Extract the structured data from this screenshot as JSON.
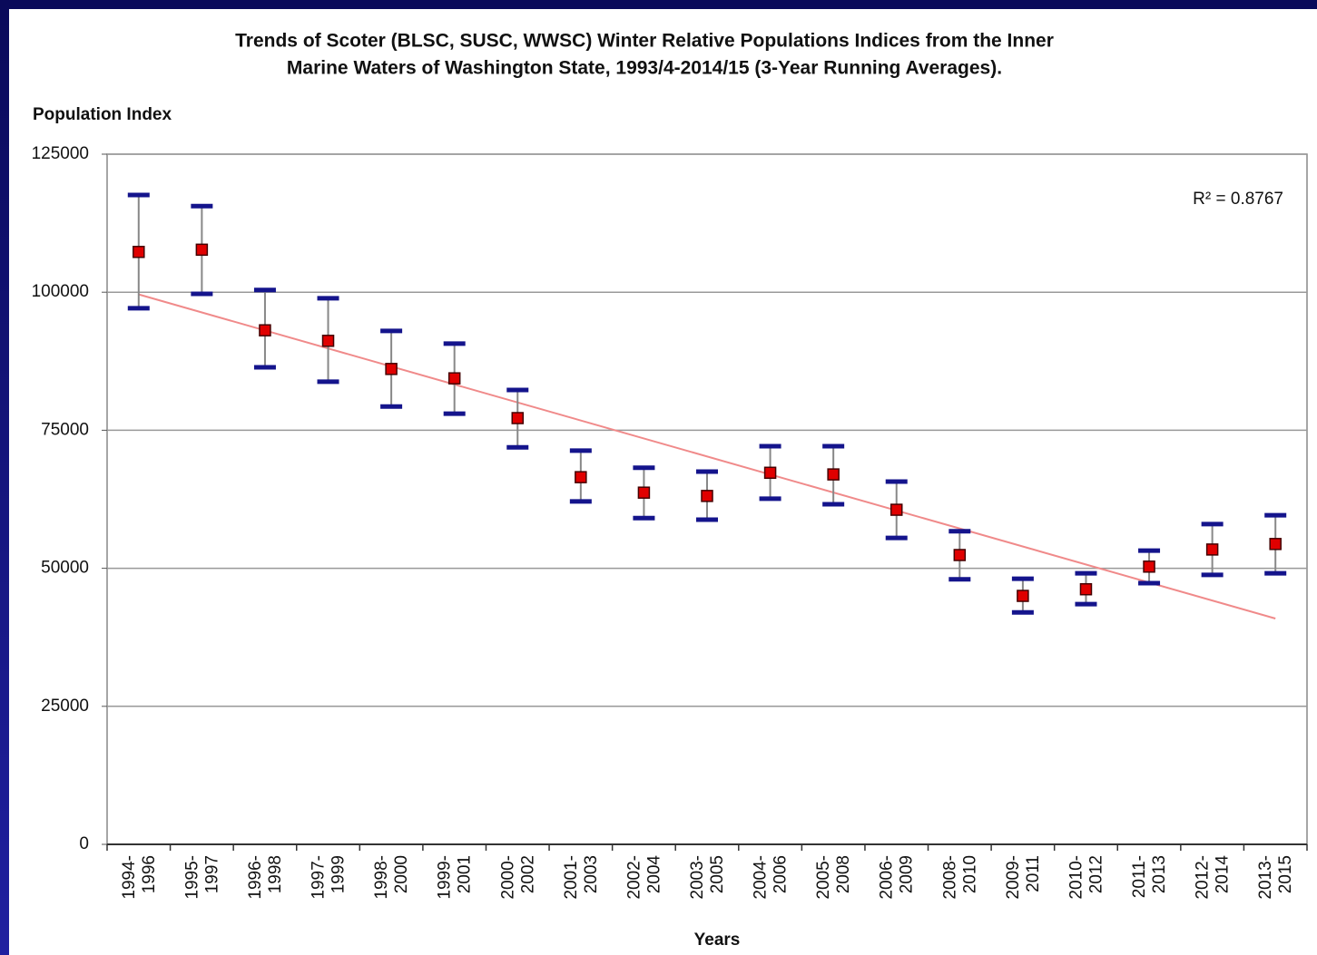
{
  "chart_data": {
    "type": "errorbar",
    "title": [
      "Trends of Scoter (BLSC, SUSC, WWSC) Winter Relative Populations Indices from the Inner",
      "Marine Waters of Washington State, 1993/4-2014/15 (3-Year Running Averages)."
    ],
    "y_label": "Population Index",
    "x_label": "Years",
    "categories": [
      "1994-1996",
      "1995-1997",
      "1996-1998",
      "1997-1999",
      "1998-2000",
      "1999-2001",
      "2000-2002",
      "2001-2003",
      "2002-2004",
      "2003-2005",
      "2004-2006",
      "2005-2008",
      "2006-2009",
      "2008-2010",
      "2009-2011",
      "2010-2012",
      "2011-2013",
      "2012-2014",
      "2013-2015"
    ],
    "values": [
      107300,
      107700,
      93100,
      91200,
      86100,
      84400,
      77200,
      66500,
      63700,
      63100,
      67300,
      67000,
      60600,
      52400,
      45000,
      46200,
      50300,
      53400,
      54400
    ],
    "upper": [
      117600,
      115600,
      100400,
      98900,
      93000,
      90700,
      82300,
      71300,
      68200,
      67500,
      72100,
      72100,
      65700,
      56700,
      48100,
      49100,
      53200,
      58000,
      59600
    ],
    "lower": [
      97100,
      99700,
      86400,
      83800,
      79300,
      78000,
      71900,
      62100,
      59100,
      58800,
      62600,
      61600,
      55500,
      48000,
      42000,
      43500,
      47300,
      48800,
      49100
    ],
    "marker_color": "#e00000",
    "cap_color": "#14148c",
    "stem_color": "#888888",
    "trendline": {
      "values": [
        99600,
        40900
      ],
      "color": "#f08a8a",
      "annotation": "R² = 0.8767"
    },
    "ylim": [
      0,
      125000
    ],
    "yticks": [
      0,
      25000,
      50000,
      75000,
      100000,
      125000
    ],
    "grid": true
  }
}
